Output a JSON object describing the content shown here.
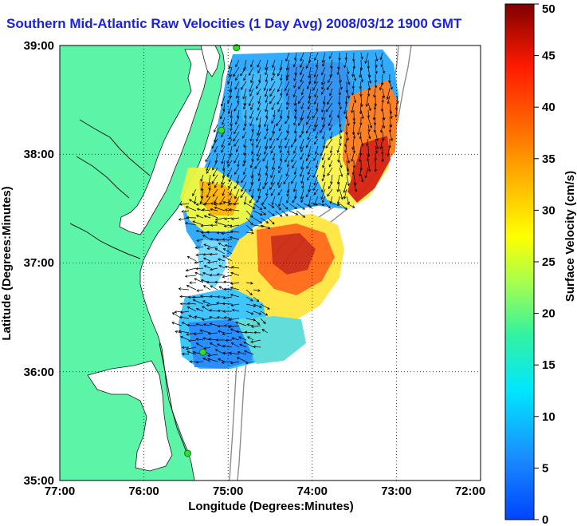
{
  "title": "Southern Mid-Atlantic Raw Velocities (1 Day Avg) 2008/03/12 1900 GMT",
  "map": {
    "xlabel": "Longitude (Degrees:Minutes)",
    "ylabel": "Latitude (Degrees:Minutes)",
    "x_ticks": [
      "77:00",
      "76:00",
      "75:00",
      "74:00",
      "73:00",
      "72:00"
    ],
    "y_ticks": [
      "39:00",
      "38:00",
      "37:00",
      "36:00",
      "35:00"
    ],
    "lon_range": [
      -77,
      -72
    ],
    "lat_range": [
      35,
      39
    ],
    "grid": "dotted",
    "land_color": "#5cf5a8",
    "water_color": "#ffffff"
  },
  "colorbar": {
    "label": "Surface Velocity (cm/s)",
    "ticks": [
      "50",
      "45",
      "40",
      "35",
      "30",
      "25",
      "20",
      "15",
      "10",
      "5",
      "0"
    ],
    "min": 0,
    "max": 50,
    "colormap": "jet"
  },
  "stations": [
    {
      "lon": -74.9,
      "lat": 38.98
    },
    {
      "lon": -75.08,
      "lat": 38.22
    },
    {
      "lon": -75.3,
      "lat": 36.18
    },
    {
      "lon": -75.48,
      "lat": 35.25
    }
  ]
}
